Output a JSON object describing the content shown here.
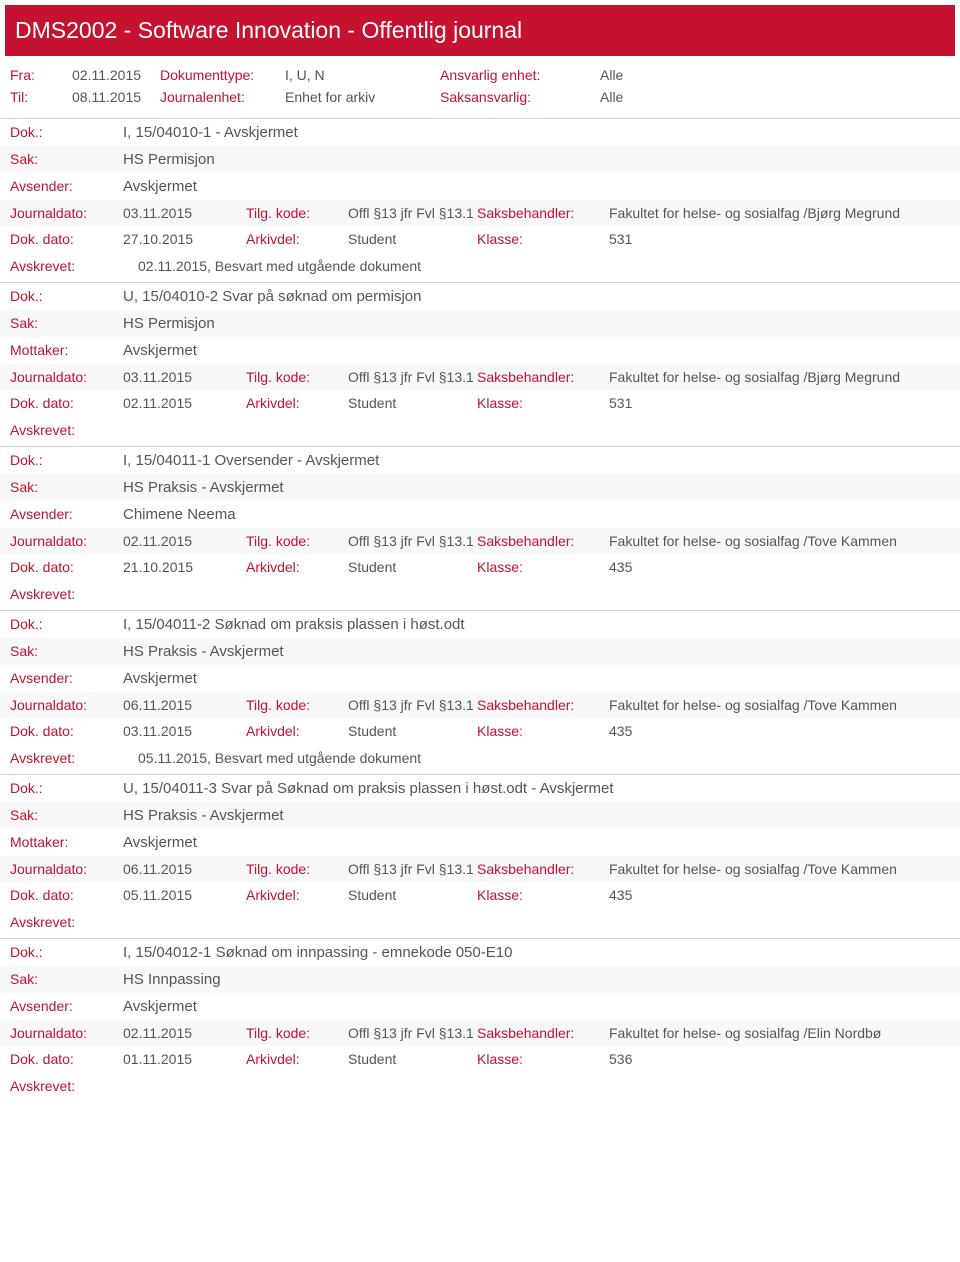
{
  "colors": {
    "brand": "#c41230",
    "text": "#555555",
    "border": "#d0d0d0",
    "altRow": "#f8f8f8",
    "bg": "#ffffff"
  },
  "header": {
    "title": "DMS2002 - Software Innovation - Offentlig journal"
  },
  "meta": {
    "fraLabel": "Fra:",
    "fraValue": "02.11.2015",
    "tilLabel": "Til:",
    "tilValue": "08.11.2015",
    "dokTypeLabel": "Dokumenttype:",
    "dokTypeValue": "I, U, N",
    "journalenhetLabel": "Journalenhet:",
    "journalenhetValue": "Enhet for arkiv",
    "ansvarligEnhetLabel": "Ansvarlig enhet:",
    "ansvarligEnhetValue": "Alle",
    "saksansvarligLabel": "Saksansvarlig:",
    "saksansvarligValue": "Alle"
  },
  "labels": {
    "dok": "Dok.:",
    "sak": "Sak:",
    "avsender": "Avsender:",
    "mottaker": "Mottaker:",
    "journaldato": "Journaldato:",
    "dokdato": "Dok. dato:",
    "tilgkode": "Tilg. kode:",
    "arkivdel": "Arkivdel:",
    "saksbehandler": "Saksbehandler:",
    "klasse": "Klasse:",
    "avskrevet": "Avskrevet:"
  },
  "entries": [
    {
      "dok": "I, 15/04010-1 - Avskjermet",
      "sak": "HS Permisjon",
      "partyLabel": "Avsender:",
      "party": "Avskjermet",
      "journaldato": "03.11.2015",
      "tilgkode": "Offl §13 jfr Fvl §13.1",
      "saksbehandler": "Fakultet for helse- og sosialfag /Bjørg Megrund",
      "dokdato": "27.10.2015",
      "arkivdel": "Student",
      "klasse": "531",
      "avskrevet": "02.11.2015, Besvart med utgående dokument"
    },
    {
      "dok": "U, 15/04010-2 Svar på søknad om permisjon",
      "sak": "HS Permisjon",
      "partyLabel": "Mottaker:",
      "party": "Avskjermet",
      "journaldato": "03.11.2015",
      "tilgkode": "Offl §13 jfr Fvl §13.1",
      "saksbehandler": "Fakultet for helse- og sosialfag /Bjørg Megrund",
      "dokdato": "02.11.2015",
      "arkivdel": "Student",
      "klasse": "531",
      "avskrevet": ""
    },
    {
      "dok": "I, 15/04011-1 Oversender - Avskjermet",
      "sak": "HS Praksis - Avskjermet",
      "partyLabel": "Avsender:",
      "party": "Chimene Neema",
      "journaldato": "02.11.2015",
      "tilgkode": "Offl §13 jfr Fvl §13.1",
      "saksbehandler": "Fakultet for helse- og sosialfag /Tove Kammen",
      "dokdato": "21.10.2015",
      "arkivdel": "Student",
      "klasse": "435",
      "avskrevet": ""
    },
    {
      "dok": "I, 15/04011-2 Søknad om praksis plassen i høst.odt",
      "sak": "HS Praksis - Avskjermet",
      "partyLabel": "Avsender:",
      "party": "Avskjermet",
      "journaldato": "06.11.2015",
      "tilgkode": "Offl §13 jfr Fvl §13.1",
      "saksbehandler": "Fakultet for helse- og sosialfag /Tove Kammen",
      "dokdato": "03.11.2015",
      "arkivdel": "Student",
      "klasse": "435",
      "avskrevet": "05.11.2015, Besvart med utgående dokument"
    },
    {
      "dok": "U, 15/04011-3 Svar på Søknad om praksis plassen i høst.odt - Avskjermet",
      "sak": "HS Praksis - Avskjermet",
      "partyLabel": "Mottaker:",
      "party": "Avskjermet",
      "journaldato": "06.11.2015",
      "tilgkode": "Offl §13 jfr Fvl §13.1",
      "saksbehandler": "Fakultet for helse- og sosialfag /Tove Kammen",
      "dokdato": "05.11.2015",
      "arkivdel": "Student",
      "klasse": "435",
      "avskrevet": ""
    },
    {
      "dok": "I, 15/04012-1 Søknad om innpassing - emnekode 050-E10",
      "sak": "HS Innpassing",
      "partyLabel": "Avsender:",
      "party": "Avskjermet",
      "journaldato": "02.11.2015",
      "tilgkode": "Offl §13 jfr Fvl §13.1",
      "saksbehandler": "Fakultet for helse- og sosialfag /Elin Nordbø",
      "dokdato": "01.11.2015",
      "arkivdel": "Student",
      "klasse": "536",
      "avskrevet": ""
    }
  ]
}
